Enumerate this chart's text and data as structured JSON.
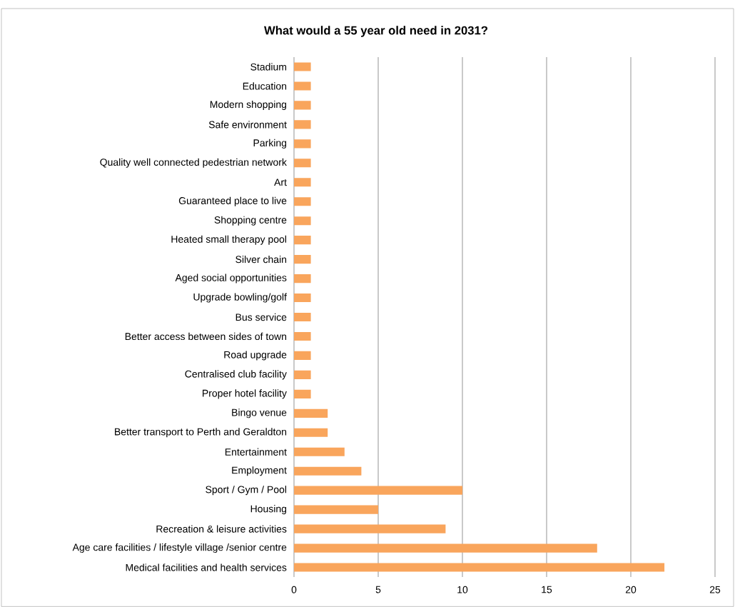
{
  "chart_data": {
    "type": "bar",
    "orientation": "horizontal",
    "title": "What would a 55 year old need in 2031?",
    "categories": [
      "Stadium",
      "Education",
      "Modern shopping",
      "Safe environment",
      "Parking",
      "Quality well connected pedestrian network",
      "Art",
      "Guaranteed place to live",
      "Shopping centre",
      "Heated small therapy pool",
      "Silver chain",
      "Aged social opportunities",
      "Upgrade bowling/golf",
      "Bus  service",
      "Better access between sides of town",
      "Road upgrade",
      "Centralised club facility",
      "Proper hotel facility",
      "Bingo venue",
      "Better transport to Perth and Geraldton",
      "Entertainment",
      "Employment",
      "Sport / Gym / Pool",
      "Housing",
      "Recreation & leisure activities",
      "Age care facilities / lifestyle village /senior centre",
      "Medical facilities and health services"
    ],
    "values": [
      1,
      1,
      1,
      1,
      1,
      1,
      1,
      1,
      1,
      1,
      1,
      1,
      1,
      1,
      1,
      1,
      1,
      1,
      2,
      2,
      3,
      4,
      10,
      5,
      9,
      18,
      22
    ],
    "color": "#f9a55c",
    "xlim": [
      0,
      25
    ],
    "xticks": [
      0,
      5,
      10,
      15,
      20,
      25
    ],
    "grid": "x"
  }
}
